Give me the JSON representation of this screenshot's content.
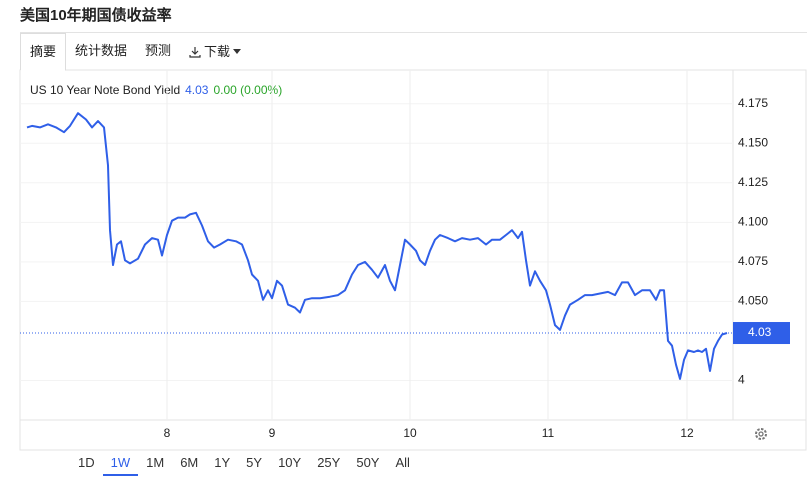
{
  "header": {
    "title": "美国10年期国债收益率"
  },
  "tabs": [
    "摘要",
    "统计数据",
    "预测",
    "下载"
  ],
  "chart_data": {
    "type": "line",
    "legend": {
      "name": "US 10 Year Note Bond Yield",
      "last": 4.03,
      "change": "0.00 (0.00%)"
    },
    "last_value": 4.03,
    "x": [
      0,
      5,
      13,
      21,
      29,
      37,
      43,
      51,
      59,
      65,
      71,
      77,
      81,
      83,
      86,
      90,
      94,
      98,
      103,
      111,
      118,
      125,
      131,
      135,
      140,
      145,
      151,
      158,
      163,
      169,
      175,
      181,
      187,
      193,
      201,
      209,
      215,
      221,
      225,
      231,
      236,
      241,
      245,
      250,
      255,
      261,
      268,
      273,
      278,
      285,
      293,
      303,
      311,
      318,
      325,
      331,
      338,
      345,
      351,
      358,
      363,
      368,
      373,
      378,
      383,
      389,
      393,
      398,
      403,
      408,
      413,
      421,
      428,
      435,
      443,
      451,
      459,
      465,
      473,
      479,
      485,
      491,
      495,
      499,
      503,
      508,
      513,
      519,
      523,
      528,
      533,
      538,
      543,
      551,
      558,
      565,
      573,
      581,
      588,
      595,
      601,
      608,
      615,
      623,
      629,
      633,
      637,
      641,
      645,
      649,
      653,
      657,
      661,
      667,
      671,
      675,
      679,
      683,
      687,
      691,
      695,
      700
    ],
    "series": [
      {
        "name": "US 10 Year Note Bond Yield",
        "color": "#2f5fe8",
        "values": [
          4.16,
          4.161,
          4.16,
          4.162,
          4.16,
          4.157,
          4.161,
          4.169,
          4.165,
          4.16,
          4.164,
          4.16,
          4.136,
          4.095,
          4.073,
          4.086,
          4.088,
          4.076,
          4.074,
          4.077,
          4.086,
          4.09,
          4.089,
          4.079,
          4.092,
          4.101,
          4.103,
          4.103,
          4.105,
          4.106,
          4.098,
          4.088,
          4.084,
          4.086,
          4.089,
          4.088,
          4.086,
          4.076,
          4.067,
          4.063,
          4.051,
          4.057,
          4.052,
          4.063,
          4.06,
          4.048,
          4.046,
          4.043,
          4.051,
          4.052,
          4.052,
          4.053,
          4.054,
          4.057,
          4.067,
          4.073,
          4.075,
          4.07,
          4.065,
          4.073,
          4.063,
          4.057,
          4.073,
          4.089,
          4.086,
          4.082,
          4.076,
          4.073,
          4.082,
          4.089,
          4.092,
          4.09,
          4.088,
          4.09,
          4.089,
          4.09,
          4.086,
          4.089,
          4.089,
          4.092,
          4.095,
          4.09,
          4.094,
          4.076,
          4.06,
          4.069,
          4.063,
          4.057,
          4.048,
          4.035,
          4.032,
          4.041,
          4.048,
          4.051,
          4.054,
          4.054,
          4.055,
          4.056,
          4.054,
          4.062,
          4.062,
          4.054,
          4.057,
          4.057,
          4.051,
          4.057,
          4.057,
          4.025,
          4.022,
          4.01,
          4.001,
          4.013,
          4.019,
          4.018,
          4.019,
          4.018,
          4.02,
          4.006,
          4.02,
          4.025,
          4.029,
          4.03
        ]
      }
    ],
    "xlim": [
      0,
      700
    ],
    "xticks": [
      {
        "value": 140,
        "label": "8"
      },
      {
        "value": 245,
        "label": "9"
      },
      {
        "value": 383,
        "label": "10"
      },
      {
        "value": 521,
        "label": "11"
      },
      {
        "value": 660,
        "label": "12"
      }
    ],
    "ylim": [
      3.975,
      4.19
    ],
    "yticks": [
      4,
      {
        "value": 4.05,
        "label": "4.050"
      },
      4.075,
      {
        "value": 4.1,
        "label": "4.100"
      },
      4.125,
      {
        "value": 4.15,
        "label": "4.150"
      },
      4.175
    ],
    "grid": true
  },
  "ranges": [
    "1D",
    "1W",
    "1M",
    "6M",
    "1Y",
    "5Y",
    "10Y",
    "25Y",
    "50Y",
    "All"
  ],
  "active_range": 1
}
